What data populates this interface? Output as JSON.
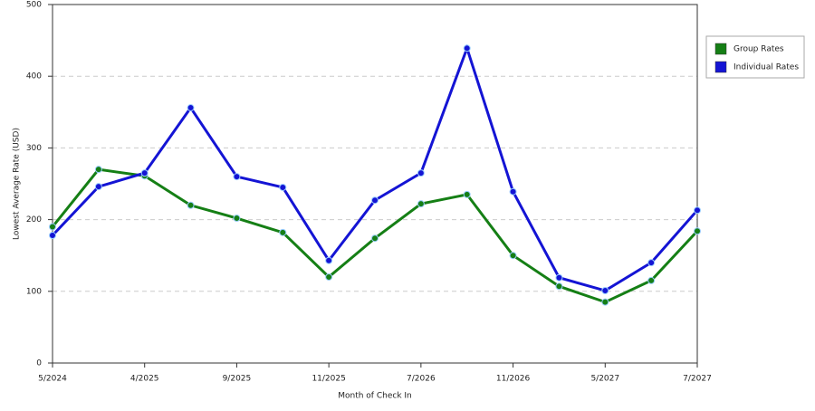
{
  "chart_data": {
    "type": "line",
    "x_label": "Month of Check In",
    "y_label": "Lowest Average Rate (USD)",
    "categories": [
      "5/2024",
      null,
      "4/2025",
      null,
      "9/2025",
      null,
      "11/2025",
      null,
      "7/2026",
      null,
      "11/2026",
      null,
      "5/2027",
      null,
      "7/2027"
    ],
    "series": [
      {
        "name": "Group Rates",
        "color": "#157f15",
        "values": [
          190,
          270,
          261,
          220,
          202,
          182,
          120,
          174,
          222,
          235,
          150,
          107,
          85,
          115,
          184
        ]
      },
      {
        "name": "Individual Rates",
        "color": "#1414d4",
        "values": [
          178,
          246,
          265,
          356,
          260,
          245,
          143,
          227,
          265,
          439,
          239,
          119,
          101,
          140,
          213
        ]
      }
    ],
    "ylim": [
      0,
      500
    ],
    "yticks": [
      0,
      100,
      200,
      300,
      400,
      500
    ],
    "grid": true,
    "legend": "right"
  }
}
